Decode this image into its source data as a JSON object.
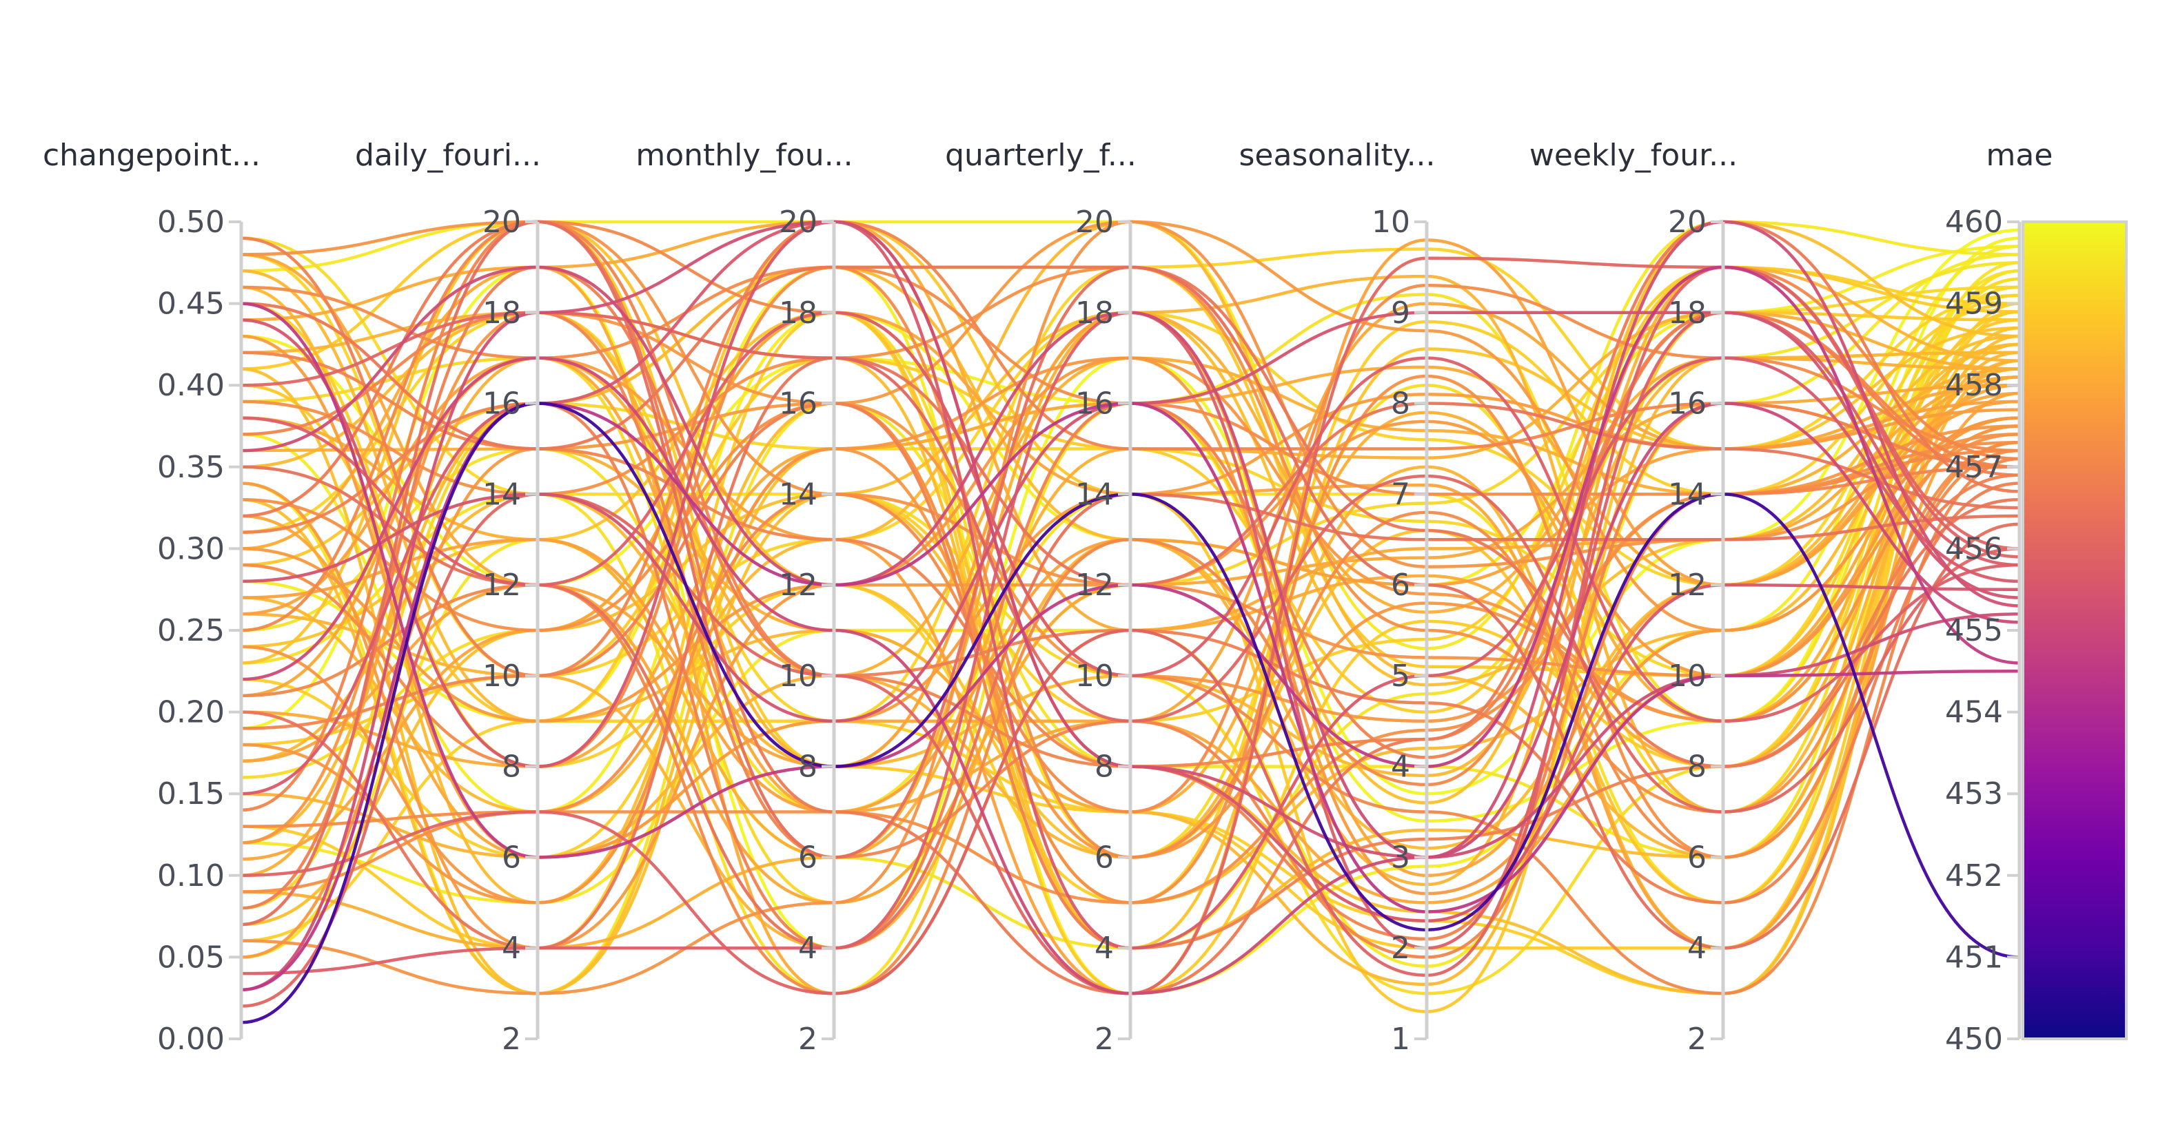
{
  "chart_data": {
    "type": "parallel_coordinates",
    "axes": [
      {
        "key": "changepoint",
        "label": "changepoint...",
        "range": [
          0,
          0.5
        ],
        "ticks": [
          "0.00",
          "0.05",
          "0.10",
          "0.15",
          "0.20",
          "0.25",
          "0.30",
          "0.35",
          "0.40",
          "0.45",
          "0.50"
        ]
      },
      {
        "key": "daily",
        "label": "daily_fouri...",
        "range": [
          2,
          20
        ],
        "ticks": [
          "2",
          "4",
          "6",
          "8",
          "10",
          "12",
          "14",
          "16",
          "18",
          "20"
        ]
      },
      {
        "key": "monthly",
        "label": "monthly_fou...",
        "range": [
          2,
          20
        ],
        "ticks": [
          "2",
          "4",
          "6",
          "8",
          "10",
          "12",
          "14",
          "16",
          "18",
          "20"
        ]
      },
      {
        "key": "quarterly",
        "label": "quarterly_f...",
        "range": [
          2,
          20
        ],
        "ticks": [
          "2",
          "4",
          "6",
          "8",
          "10",
          "12",
          "14",
          "16",
          "18",
          "20"
        ]
      },
      {
        "key": "seasonality",
        "label": "seasonality...",
        "range": [
          1,
          10
        ],
        "ticks": [
          "1",
          "2",
          "3",
          "4",
          "5",
          "6",
          "7",
          "8",
          "9",
          "10"
        ]
      },
      {
        "key": "weekly",
        "label": "weekly_four...",
        "range": [
          2,
          20
        ],
        "ticks": [
          "2",
          "4",
          "6",
          "8",
          "10",
          "12",
          "14",
          "16",
          "18",
          "20"
        ]
      },
      {
        "key": "mae",
        "label": "mae",
        "range": [
          450,
          460
        ],
        "ticks": [
          "450",
          "451",
          "452",
          "453",
          "454",
          "455",
          "456",
          "457",
          "458",
          "459",
          "460"
        ]
      }
    ],
    "colorbar": {
      "range": [
        450,
        460
      ],
      "colorscale": [
        "#0d0887",
        "#46039f",
        "#7201a8",
        "#9c179e",
        "#bd3786",
        "#d8576b",
        "#ed7953",
        "#fb9f3a",
        "#fdca26",
        "#f0f921"
      ]
    },
    "lines": [
      [
        0.01,
        16,
        8,
        14,
        2.2,
        14,
        451.0
      ],
      [
        0.03,
        18,
        20,
        8,
        3,
        20,
        455.3
      ],
      [
        0.04,
        4,
        4,
        18,
        2,
        18,
        455.8
      ],
      [
        0.03,
        16,
        12,
        16,
        2.4,
        10,
        454.5
      ],
      [
        0.02,
        14,
        10,
        3,
        9.6,
        19,
        456.0
      ],
      [
        0.45,
        6,
        8,
        12,
        4,
        19,
        454.6
      ],
      [
        0.44,
        8,
        20,
        8,
        2.3,
        12,
        455.5
      ],
      [
        0.38,
        12,
        18,
        10,
        8.5,
        9,
        455.8
      ],
      [
        0.36,
        19,
        12,
        18,
        3,
        10,
        455.2
      ],
      [
        0.28,
        14,
        9,
        16,
        9,
        18,
        455.4
      ],
      [
        0.07,
        20,
        6,
        19,
        6,
        4,
        456.3
      ],
      [
        0.1,
        7,
        3,
        11,
        1.7,
        19,
        455.9
      ],
      [
        0.15,
        16,
        20,
        4,
        5,
        17,
        455.6
      ],
      [
        0.35,
        12,
        4,
        14,
        6.5,
        13,
        456.4
      ],
      [
        0.22,
        17,
        11,
        3,
        3,
        16,
        455.1
      ],
      [
        0.4,
        18,
        17,
        9,
        7.2,
        7,
        456.0
      ],
      [
        0.48,
        20,
        14,
        12,
        5.2,
        10,
        457.4
      ],
      [
        0.46,
        17,
        19,
        16,
        7,
        14,
        457.2
      ],
      [
        0.42,
        15,
        13,
        8,
        4.3,
        18,
        457.0
      ],
      [
        0.33,
        11,
        16,
        5,
        8.3,
        6,
        457.3
      ],
      [
        0.3,
        9,
        12,
        17,
        2.6,
        11,
        457.6
      ],
      [
        0.27,
        13,
        7,
        13,
        6,
        15,
        457.8
      ],
      [
        0.25,
        20,
        18,
        10,
        3.5,
        3,
        457.1
      ],
      [
        0.24,
        5,
        15,
        6,
        5.8,
        9,
        457.5
      ],
      [
        0.19,
        10,
        20,
        15,
        7.5,
        16,
        457.0
      ],
      [
        0.17,
        12,
        8,
        18,
        2.8,
        12,
        457.9
      ],
      [
        0.13,
        7,
        14,
        7,
        9.3,
        17,
        457.2
      ],
      [
        0.08,
        19,
        10,
        11,
        4.7,
        5,
        456.8
      ],
      [
        0.06,
        3,
        5,
        20,
        6.2,
        13,
        457.4
      ],
      [
        0.49,
        10,
        16,
        4,
        3.2,
        8,
        456.9
      ],
      [
        0.43,
        6,
        9,
        14,
        8.1,
        15,
        457.7
      ],
      [
        0.39,
        14,
        17,
        19,
        5.5,
        7,
        457.3
      ],
      [
        0.37,
        18,
        6,
        9,
        1.9,
        14,
        457.0
      ],
      [
        0.34,
        4,
        12,
        12,
        7.8,
        10,
        457.6
      ],
      [
        0.31,
        16,
        4,
        16,
        4.1,
        18,
        456.9
      ],
      [
        0.29,
        8,
        19,
        6,
        6.8,
        6,
        457.2
      ],
      [
        0.26,
        17,
        13,
        3,
        9.8,
        12,
        457.8
      ],
      [
        0.21,
        12,
        3,
        13,
        3.8,
        19,
        457.1
      ],
      [
        0.18,
        5,
        15,
        17,
        5.9,
        9,
        457.5
      ],
      [
        0.14,
        20,
        10,
        8,
        2.1,
        16,
        457.0
      ],
      [
        0.11,
        11,
        18,
        14,
        7.1,
        4,
        457.9
      ],
      [
        0.09,
        7,
        7,
        5,
        4.4,
        14,
        457.3
      ],
      [
        0.05,
        15,
        16,
        20,
        8.8,
        11,
        457.6
      ],
      [
        0.47,
        9,
        11,
        7,
        1.6,
        17,
        458.4
      ],
      [
        0.44,
        19,
        20,
        11,
        6.1,
        8,
        458.1
      ],
      [
        0.41,
        3,
        14,
        18,
        4.9,
        13,
        458.6
      ],
      [
        0.38,
        13,
        6,
        15,
        7.4,
        18,
        458.2
      ],
      [
        0.35,
        18,
        17,
        4,
        3.3,
        6,
        458.5
      ],
      [
        0.32,
        6,
        9,
        9,
        9.1,
        15,
        458.0
      ],
      [
        0.29,
        16,
        19,
        19,
        5.1,
        10,
        458.8
      ],
      [
        0.26,
        10,
        4,
        13,
        2.7,
        19,
        458.3
      ],
      [
        0.23,
        20,
        12,
        6,
        6.6,
        5,
        458.7
      ],
      [
        0.2,
        8,
        15,
        16,
        8.4,
        12,
        458.1
      ],
      [
        0.17,
        14,
        8,
        10,
        3.9,
        17,
        458.4
      ],
      [
        0.13,
        4,
        18,
        3,
        5.6,
        8,
        458.9
      ],
      [
        0.1,
        17,
        10,
        17,
        7.7,
        14,
        458.2
      ],
      [
        0.07,
        11,
        14,
        8,
        2.4,
        3,
        458.6
      ],
      [
        0.48,
        12,
        5,
        12,
        6.3,
        16,
        458.0
      ],
      [
        0.46,
        5,
        16,
        5,
        4.2,
        11,
        458.5
      ],
      [
        0.42,
        18,
        8,
        18,
        9.4,
        7,
        458.3
      ],
      [
        0.4,
        9,
        20,
        14,
        1.3,
        18,
        458.8
      ],
      [
        0.36,
        15,
        11,
        7,
        7.9,
        9,
        458.2
      ],
      [
        0.33,
        3,
        15,
        16,
        3.6,
        20,
        458.6
      ],
      [
        0.3,
        19,
        3,
        11,
        6.4,
        13,
        458.1
      ],
      [
        0.27,
        7,
        13,
        20,
        5.0,
        6,
        458.4
      ],
      [
        0.24,
        13,
        18,
        4,
        8.6,
        15,
        458.7
      ],
      [
        0.21,
        17,
        7,
        9,
        2.5,
        10,
        458.0
      ],
      [
        0.18,
        10,
        17,
        15,
        4.6,
        19,
        458.9
      ],
      [
        0.15,
        6,
        10,
        6,
        7.3,
        4,
        458.3
      ],
      [
        0.12,
        16,
        19,
        13,
        3.1,
        12,
        458.5
      ],
      [
        0.09,
        4,
        6,
        18,
        5.7,
        17,
        458.2
      ],
      [
        0.49,
        14,
        14,
        10,
        1.5,
        8,
        459.3
      ],
      [
        0.47,
        20,
        20,
        20,
        5.3,
        20,
        459.6
      ],
      [
        0.45,
        8,
        12,
        5,
        8.9,
        14,
        459.0
      ],
      [
        0.43,
        12,
        17,
        16,
        3.4,
        9,
        459.8
      ],
      [
        0.39,
        17,
        5,
        12,
        6.9,
        18,
        459.2
      ],
      [
        0.34,
        3,
        16,
        8,
        4.0,
        6,
        459.5
      ],
      [
        0.31,
        18,
        9,
        19,
        9.7,
        15,
        459.1
      ],
      [
        0.28,
        9,
        19,
        3,
        2.9,
        11,
        459.7
      ],
      [
        0.25,
        15,
        7,
        14,
        7.0,
        5,
        459.4
      ],
      [
        0.22,
        6,
        14,
        9,
        5.4,
        19,
        459.0
      ],
      [
        0.19,
        19,
        4,
        17,
        3.7,
        13,
        459.9
      ],
      [
        0.16,
        11,
        18,
        6,
        8.2,
        7,
        459.3
      ],
      [
        0.12,
        5,
        11,
        11,
        1.8,
        16,
        459.6
      ],
      [
        0.08,
        16,
        15,
        15,
        6.7,
        10,
        459.2
      ],
      [
        0.05,
        13,
        6,
        4,
        4.8,
        17,
        459.5
      ],
      [
        0.48,
        10,
        13,
        18,
        7.6,
        12,
        459.1
      ],
      [
        0.41,
        20,
        8,
        7,
        2.0,
        4,
        458.9
      ],
      [
        0.37,
        7,
        18,
        13,
        6.0,
        18,
        459.7
      ],
      [
        0.23,
        14,
        3,
        16,
        9.2,
        9,
        459.4
      ],
      [
        0.12,
        18,
        16,
        10,
        4.5,
        14,
        457.5
      ],
      [
        0.06,
        9,
        9,
        7,
        2.3,
        3,
        459.0
      ],
      [
        0.45,
        15,
        19,
        19,
        6.6,
        8,
        456.6
      ],
      [
        0.32,
        20,
        7,
        3,
        4.3,
        20,
        456.7
      ],
      [
        0.2,
        4,
        17,
        12,
        8.0,
        15,
        456.5
      ]
    ]
  }
}
